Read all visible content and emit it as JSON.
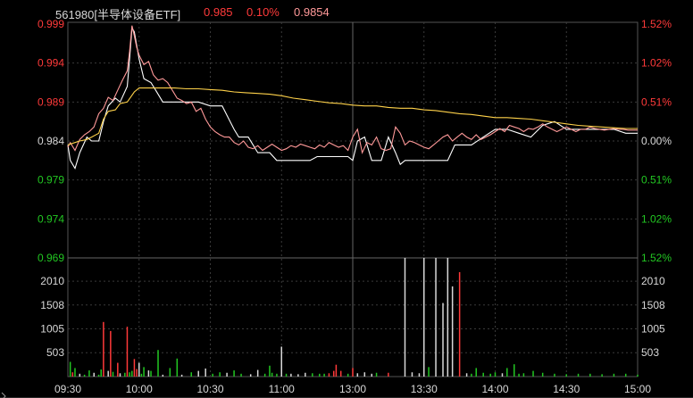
{
  "header": {
    "symbol_label": "561980[半导体设备ETF]",
    "price": "0.985",
    "change_pct": "0.10%",
    "avg_price": "0.9854"
  },
  "colors": {
    "background": "#000000",
    "up": "#ff3a3a",
    "down": "#22c722",
    "flat": "#d8d8d8",
    "price_line": "#ffffff",
    "reference_line": "#ff9999",
    "avg_line": "#ffd24a",
    "grid": "#3a3a3a"
  },
  "chart_data": [
    {
      "type": "line",
      "ylim": [
        0.969,
        0.999
      ],
      "y_ticks_left": [
        "0.999",
        "0.994",
        "0.989",
        "0.984",
        "0.979",
        "0.974",
        "0.969"
      ],
      "y_ticks_right": [
        "1.52%",
        "1.02%",
        "0.51%",
        "0.00%",
        "0.51%",
        "1.02%",
        "1.52%"
      ],
      "series": [
        {
          "values_x": [
            0,
            1,
            3,
            5,
            8,
            10,
            13,
            15,
            17,
            20,
            22,
            25,
            26,
            27,
            28,
            30,
            32,
            35,
            37,
            40,
            45,
            50,
            55,
            60,
            65,
            70,
            72,
            74,
            76,
            78,
            80,
            82,
            85,
            88,
            90,
            92,
            95,
            98,
            100,
            102,
            105,
            108,
            110,
            112,
            115,
            118,
            120,
            122,
            125,
            128,
            130,
            132,
            135,
            138,
            140,
            142,
            145,
            148,
            150,
            153,
            155,
            158,
            160,
            163,
            165,
            168,
            170,
            175,
            180,
            185,
            190,
            195,
            200,
            205,
            210,
            215,
            220,
            225,
            230,
            235,
            238,
            240
          ],
          "values_y": [
            0.9835,
            0.9815,
            0.9805,
            0.9825,
            0.9845,
            0.984,
            0.984,
            0.9865,
            0.9885,
            0.9895,
            0.989,
            0.991,
            0.9945,
            0.9985,
            0.998,
            0.9945,
            0.992,
            0.9915,
            0.9905,
            0.989,
            0.989,
            0.989,
            0.989,
            0.9885,
            0.9885,
            0.9855,
            0.9845,
            0.9845,
            0.9845,
            0.9835,
            0.9825,
            0.9825,
            0.9825,
            0.9815,
            0.9815,
            0.9815,
            0.9815,
            0.9815,
            0.9815,
            0.9815,
            0.982,
            0.982,
            0.982,
            0.982,
            0.982,
            0.982,
            0.9815,
            0.984,
            0.9845,
            0.9815,
            0.9815,
            0.9815,
            0.9845,
            0.9825,
            0.981,
            0.9815,
            0.9815,
            0.9815,
            0.9815,
            0.9815,
            0.9815,
            0.9815,
            0.9815,
            0.9835,
            0.9835,
            0.9835,
            0.9835,
            0.9845,
            0.9855,
            0.9855,
            0.985,
            0.9845,
            0.986,
            0.9865,
            0.9855,
            0.9855,
            0.9855,
            0.9855,
            0.9855,
            0.985,
            0.985,
            0.985
          ]
        },
        {
          "values_x": [
            0,
            1,
            3,
            5,
            7,
            9,
            11,
            13,
            15,
            17,
            19,
            21,
            23,
            25,
            26,
            27,
            28,
            29,
            30,
            32,
            34,
            36,
            38,
            40,
            42,
            44,
            46,
            48,
            50,
            52,
            54,
            56,
            58,
            60,
            62,
            64,
            66,
            68,
            70,
            72,
            74,
            76,
            78,
            80,
            82,
            84,
            86,
            88,
            90,
            92,
            94,
            96,
            98,
            100,
            102,
            104,
            106,
            108,
            110,
            112,
            114,
            116,
            118,
            120,
            122,
            124,
            126,
            128,
            130,
            132,
            134,
            136,
            138,
            140,
            142,
            144,
            146,
            148,
            150,
            152,
            154,
            156,
            158,
            160,
            162,
            164,
            166,
            168,
            170,
            172,
            174,
            176,
            178,
            180,
            182,
            184,
            186,
            188,
            190,
            192,
            194,
            196,
            198,
            200,
            202,
            204,
            206,
            208,
            210,
            212,
            214,
            216,
            218,
            220,
            222,
            224,
            226,
            228,
            230,
            232,
            234,
            236,
            238,
            240
          ],
          "values_y": [
            0.9832,
            0.9838,
            0.9828,
            0.9842,
            0.9848,
            0.9852,
            0.9858,
            0.9875,
            0.9882,
            0.9896,
            0.9892,
            0.9905,
            0.9918,
            0.993,
            0.9955,
            0.9988,
            0.9975,
            0.996,
            0.995,
            0.9938,
            0.9942,
            0.9925,
            0.9918,
            0.992,
            0.9915,
            0.9905,
            0.9895,
            0.9892,
            0.9888,
            0.989,
            0.9878,
            0.9882,
            0.9868,
            0.9858,
            0.9852,
            0.9848,
            0.9845,
            0.9845,
            0.9838,
            0.9835,
            0.984,
            0.9832,
            0.983,
            0.9834,
            0.9828,
            0.9832,
            0.9836,
            0.9832,
            0.9828,
            0.983,
            0.9834,
            0.9832,
            0.9836,
            0.9834,
            0.9832,
            0.983,
            0.9835,
            0.9832,
            0.9838,
            0.9835,
            0.9832,
            0.9834,
            0.9828,
            0.9845,
            0.9855,
            0.9825,
            0.9838,
            0.9835,
            0.9845,
            0.983,
            0.9828,
            0.983,
            0.9858,
            0.985,
            0.9835,
            0.984,
            0.9838,
            0.9835,
            0.9832,
            0.983,
            0.9835,
            0.984,
            0.9845,
            0.9848,
            0.984,
            0.9845,
            0.985,
            0.9845,
            0.9842,
            0.9848,
            0.9842,
            0.9845,
            0.9848,
            0.9852,
            0.9856,
            0.9852,
            0.986,
            0.9858,
            0.9856,
            0.9852,
            0.9856,
            0.9855,
            0.9858,
            0.9862,
            0.9858,
            0.9855,
            0.9852,
            0.9855,
            0.9858,
            0.9855,
            0.9852,
            0.9855,
            0.9855,
            0.9858,
            0.9856,
            0.9855,
            0.9854,
            0.9855,
            0.9856,
            0.9855,
            0.9855,
            0.9854,
            0.9854,
            0.9854
          ]
        },
        {
          "values_x": [
            0,
            3,
            5,
            8,
            10,
            13,
            15,
            17,
            20,
            22,
            25,
            28,
            30,
            35,
            40,
            45,
            50,
            55,
            60,
            65,
            70,
            75,
            80,
            85,
            90,
            95,
            100,
            105,
            110,
            115,
            120,
            125,
            130,
            135,
            140,
            145,
            150,
            155,
            160,
            165,
            170,
            175,
            180,
            185,
            190,
            195,
            200,
            205,
            210,
            215,
            220,
            225,
            230,
            235,
            240
          ],
          "values_y": [
            0.9835,
            0.9838,
            0.984,
            0.9842,
            0.9845,
            0.985,
            0.9868,
            0.9878,
            0.988,
            0.9888,
            0.989,
            0.9903,
            0.9908,
            0.9908,
            0.9908,
            0.9908,
            0.9907,
            0.9907,
            0.9906,
            0.9905,
            0.9903,
            0.9902,
            0.9901,
            0.99,
            0.9898,
            0.9895,
            0.9893,
            0.9891,
            0.9889,
            0.9888,
            0.9886,
            0.9885,
            0.9885,
            0.9883,
            0.9882,
            0.9882,
            0.988,
            0.9879,
            0.9877,
            0.9875,
            0.9874,
            0.9872,
            0.987,
            0.987,
            0.9869,
            0.9868,
            0.9866,
            0.9864,
            0.9862,
            0.986,
            0.9859,
            0.9858,
            0.9857,
            0.9856,
            0.9856
          ]
        }
      ]
    },
    {
      "type": "bar",
      "ylim": [
        0,
        2500
      ],
      "y_ticks_left": [
        "2010",
        "1508",
        "1005",
        "503"
      ],
      "y_ticks_right": [
        "2010",
        "1508",
        "1005",
        "503"
      ],
      "x_tick_labels": [
        "09:30",
        "10:00",
        "10:30",
        "11:00",
        "13:00",
        "13:30",
        "14:00",
        "14:30",
        "15:00"
      ],
      "values_x": [
        1,
        2,
        3,
        5,
        7,
        9,
        11,
        13,
        14,
        15,
        17,
        18,
        19,
        21,
        22,
        24,
        25,
        26,
        27,
        28,
        29,
        30,
        31,
        32,
        34,
        35,
        38,
        40,
        43,
        46,
        48,
        52,
        55,
        58,
        61,
        64,
        67,
        70,
        73,
        77,
        80,
        83,
        85,
        86,
        88,
        90,
        92,
        94,
        97,
        100,
        103,
        106,
        108,
        110,
        112,
        113,
        115,
        118,
        120,
        122,
        125,
        128,
        130,
        135,
        142,
        145,
        148,
        150,
        152,
        155,
        158,
        160,
        162,
        165,
        168,
        170,
        172,
        175,
        178,
        180,
        183,
        185,
        188,
        190,
        192,
        196,
        200,
        205,
        210,
        215,
        220,
        225,
        230,
        235,
        240
      ],
      "values_y": [
        310,
        90,
        180,
        60,
        40,
        130,
        80,
        40,
        150,
        1150,
        120,
        960,
        100,
        290,
        70,
        80,
        1050,
        90,
        120,
        370,
        160,
        290,
        60,
        200,
        130,
        120,
        560,
        40,
        180,
        380,
        40,
        90,
        120,
        170,
        60,
        90,
        80,
        130,
        60,
        50,
        140,
        60,
        230,
        80,
        60,
        630,
        60,
        60,
        50,
        80,
        70,
        60,
        60,
        70,
        120,
        250,
        120,
        60,
        180,
        70,
        90,
        60,
        80,
        80,
        2500,
        90,
        70,
        2500,
        200,
        2500,
        1550,
        2500,
        1900,
        2200,
        70,
        60,
        180,
        80,
        60,
        90,
        70,
        180,
        260,
        60,
        70,
        120,
        80,
        60,
        50,
        60,
        60,
        50,
        60,
        60,
        40
      ],
      "colors": [
        "down",
        "up",
        "down",
        "flat",
        "down",
        "down",
        "flat",
        "down",
        "down",
        "up",
        "flat",
        "up",
        "down",
        "up",
        "flat",
        "down",
        "up",
        "down",
        "down",
        "up",
        "up",
        "flat",
        "down",
        "down",
        "flat",
        "down",
        "down",
        "flat",
        "down",
        "down",
        "flat",
        "down",
        "flat",
        "flat",
        "down",
        "down",
        "flat",
        "down",
        "down",
        "flat",
        "flat",
        "down",
        "down",
        "down",
        "down",
        "flat",
        "down",
        "flat",
        "flat",
        "flat",
        "down",
        "down",
        "down",
        "up",
        "up",
        "up",
        "up",
        "down",
        "up",
        "flat",
        "flat",
        "flat",
        "down",
        "up",
        "flat",
        "flat",
        "flat",
        "flat",
        "down",
        "flat",
        "flat",
        "flat",
        "flat",
        "up",
        "flat",
        "down",
        "down",
        "down",
        "down",
        "down",
        "flat",
        "down",
        "down",
        "down",
        "down",
        "down",
        "down",
        "down",
        "down",
        "down",
        "down",
        "down",
        "down",
        "down",
        "down"
      ]
    }
  ]
}
